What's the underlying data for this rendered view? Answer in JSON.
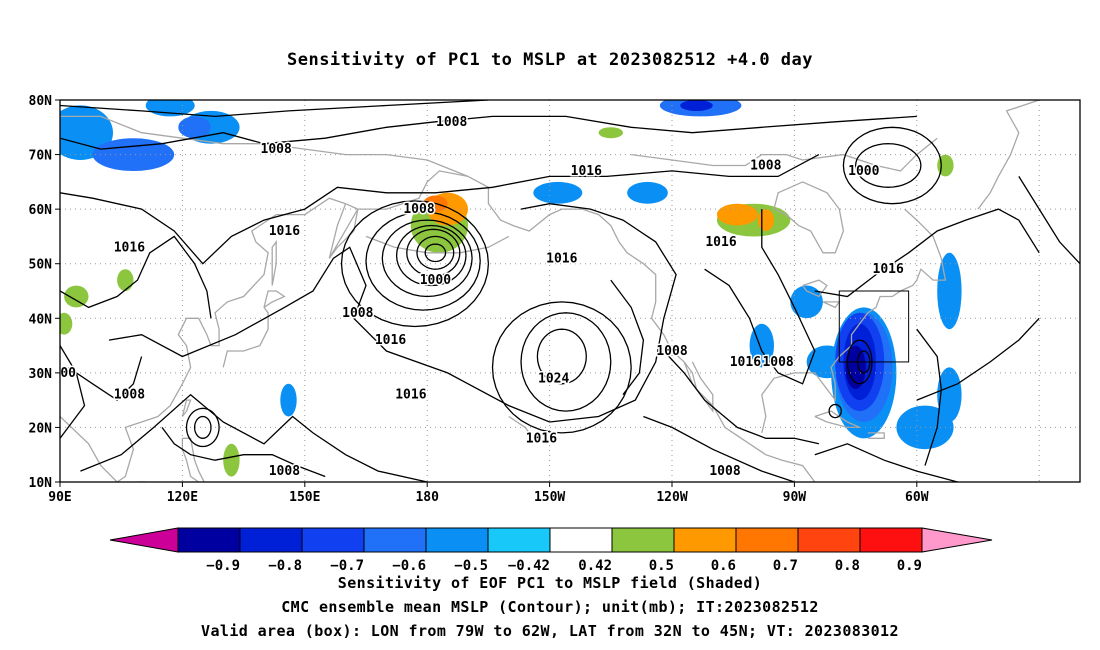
{
  "title": "Sensitivity of PC1 to MSLP at 2023082512 +4.0 day",
  "lat_labels": [
    "80N",
    "70N",
    "60N",
    "50N",
    "40N",
    "30N",
    "20N",
    "10N"
  ],
  "lon_labels": [
    "90E",
    "120E",
    "150E",
    "180",
    "150W",
    "120W",
    "90W",
    "60W"
  ],
  "contour_labels": [
    {
      "text": "1008",
      "lon": -174,
      "lat": 76
    },
    {
      "text": "1008",
      "lon": 143,
      "lat": 71
    },
    {
      "text": "1008",
      "lon": -97,
      "lat": 68
    },
    {
      "text": "1016",
      "lon": -141,
      "lat": 67
    },
    {
      "text": "1000",
      "lon": -73,
      "lat": 67
    },
    {
      "text": "1008",
      "lon": 178,
      "lat": 60
    },
    {
      "text": "1016",
      "lon": -108,
      "lat": 54
    },
    {
      "text": "1016",
      "lon": 145,
      "lat": 56
    },
    {
      "text": "1016",
      "lon": 107,
      "lat": 53
    },
    {
      "text": "1016",
      "lon": -147,
      "lat": 51
    },
    {
      "text": "1016",
      "lon": -67,
      "lat": 49
    },
    {
      "text": "1000",
      "lon": -178,
      "lat": 47
    },
    {
      "text": "1008",
      "lon": 163,
      "lat": 41
    },
    {
      "text": "1016",
      "lon": 171,
      "lat": 36
    },
    {
      "text": "1008",
      "lon": -120,
      "lat": 34
    },
    {
      "text": "1016",
      "lon": -102,
      "lat": 32
    },
    {
      "text": "1008",
      "lon": -94,
      "lat": 32
    },
    {
      "text": "1024",
      "lon": -149,
      "lat": 29
    },
    {
      "text": "1008",
      "lon": 107,
      "lat": 26
    },
    {
      "text": "1016",
      "lon": 176,
      "lat": 26
    },
    {
      "text": "1016",
      "lon": -152,
      "lat": 18
    },
    {
      "text": "1008",
      "lon": 145,
      "lat": 12
    },
    {
      "text": "1008",
      "lon": -107,
      "lat": 12
    },
    {
      "text": "00",
      "lon": 92,
      "lat": 30
    }
  ],
  "colorbar": {
    "colors": [
      "#cc0099",
      "#0000a0",
      "#0020d8",
      "#1040f0",
      "#2070f8",
      "#0a90f5",
      "#18c8f8",
      "#ffffff",
      "#8cc63f",
      "#ff9900",
      "#ff7700",
      "#ff4410",
      "#ff1010",
      "#ff99cc"
    ],
    "tick_labels": [
      "−0.9",
      "−0.8",
      "−0.7",
      "−0.6",
      "−0.5",
      "−0.42",
      "0.42",
      "0.5",
      "0.6",
      "0.7",
      "0.8",
      "0.9"
    ]
  },
  "shading": [
    {
      "v": -0.5,
      "lon": 95,
      "lat": 74,
      "rx": 8,
      "ry": 5
    },
    {
      "v": -0.6,
      "lon": 108,
      "lat": 70,
      "rx": 10,
      "ry": 3
    },
    {
      "v": -0.5,
      "lon": 127,
      "lat": 75,
      "rx": 7,
      "ry": 3
    },
    {
      "v": -0.6,
      "lon": 123,
      "lat": 75,
      "rx": 4,
      "ry": 2
    },
    {
      "v": -0.5,
      "lon": 117,
      "lat": 79,
      "rx": 6,
      "ry": 2
    },
    {
      "v": -0.5,
      "lon": -148,
      "lat": 63,
      "rx": 6,
      "ry": 2
    },
    {
      "v": -0.5,
      "lon": -126,
      "lat": 63,
      "rx": 5,
      "ry": 2
    },
    {
      "v": -0.6,
      "lon": -113,
      "lat": 79,
      "rx": 10,
      "ry": 2
    },
    {
      "v": -0.8,
      "lon": -114,
      "lat": 79,
      "rx": 4,
      "ry": 1
    },
    {
      "v": -0.5,
      "lon": -52,
      "lat": 45,
      "rx": 3,
      "ry": 7
    },
    {
      "v": -0.5,
      "lon": -87,
      "lat": 43,
      "rx": 4,
      "ry": 3
    },
    {
      "v": -0.5,
      "lon": -98,
      "lat": 35,
      "rx": 3,
      "ry": 4
    },
    {
      "v": -0.5,
      "lon": -82,
      "lat": 32,
      "rx": 5,
      "ry": 3
    },
    {
      "v": -0.5,
      "lon": -58,
      "lat": 20,
      "rx": 7,
      "ry": 4
    },
    {
      "v": -0.5,
      "lon": -52,
      "lat": 26,
      "rx": 3,
      "ry": 5
    },
    {
      "v": -0.5,
      "lon": 146,
      "lat": 25,
      "rx": 2,
      "ry": 3
    },
    {
      "v": -0.5,
      "lon": -73,
      "lat": 30,
      "rx": 8,
      "ry": 12
    },
    {
      "v": -0.6,
      "lon": -73,
      "lat": 31,
      "rx": 7,
      "ry": 10
    },
    {
      "v": -0.7,
      "lon": -74,
      "lat": 32,
      "rx": 6,
      "ry": 9
    },
    {
      "v": -0.8,
      "lon": -74,
      "lat": 32,
      "rx": 4,
      "ry": 7
    },
    {
      "v": -0.9,
      "lon": -75,
      "lat": 31,
      "rx": 2.5,
      "ry": 4
    },
    {
      "v": 0.5,
      "lon": -177,
      "lat": 57,
      "rx": 7,
      "ry": 5
    },
    {
      "v": 0.6,
      "lon": -175,
      "lat": 60,
      "rx": 5,
      "ry": 3
    },
    {
      "v": 0.7,
      "lon": -178,
      "lat": 61,
      "rx": 3,
      "ry": 1.5
    },
    {
      "v": 0.5,
      "lon": -100,
      "lat": 58,
      "rx": 9,
      "ry": 3
    },
    {
      "v": 0.6,
      "lon": -104,
      "lat": 59,
      "rx": 5,
      "ry": 2
    },
    {
      "v": 0.6,
      "lon": -97,
      "lat": 58,
      "rx": 2,
      "ry": 2
    },
    {
      "v": 0.5,
      "lon": -135,
      "lat": 74,
      "rx": 3,
      "ry": 1
    },
    {
      "v": 0.5,
      "lon": 94,
      "lat": 44,
      "rx": 3,
      "ry": 2
    },
    {
      "v": 0.5,
      "lon": 91,
      "lat": 39,
      "rx": 2,
      "ry": 2
    },
    {
      "v": 0.5,
      "lon": 106,
      "lat": 47,
      "rx": 2,
      "ry": 2
    },
    {
      "v": 0.5,
      "lon": 132,
      "lat": 14,
      "rx": 2,
      "ry": 3
    },
    {
      "v": 0.5,
      "lon": -53,
      "lat": 68,
      "rx": 2,
      "ry": 2
    }
  ],
  "footer": [
    "Sensitivity of EOF PC1 to MSLP field (Shaded)",
    "CMC ensemble mean MSLP (Contour); unit(mb); IT:2023082512",
    "Valid area (box): LON from 79W to 62W, LAT from 32N to 45N; VT: 2023083012"
  ]
}
